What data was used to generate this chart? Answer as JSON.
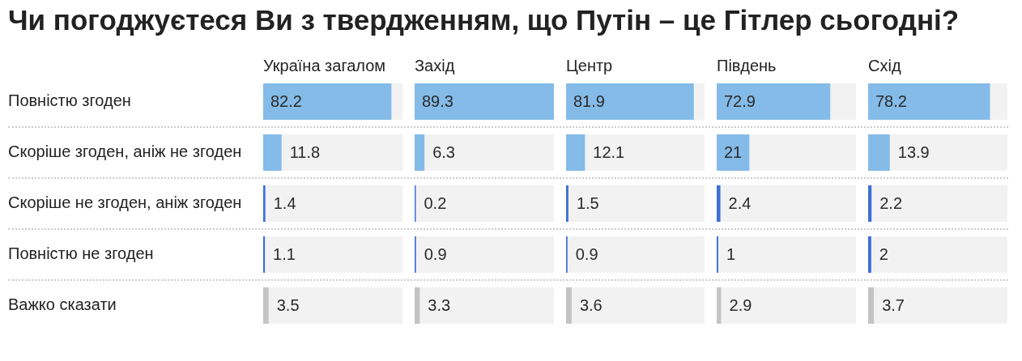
{
  "chart_data": [
    {
      "type": "other",
      "title": "Чи погоджуєтеся Ви з твердженням, що Путін – це Гітлер сьогодні?"
    },
    {
      "type": "bar",
      "orientation": "horizontal",
      "title": "Україна загалом",
      "categories": [
        "Повністю згоден",
        "Скоріше згоден, аніж не згоден",
        "Скоріше не згоден, аніж згоден",
        "Повністю не згоден",
        "Важко сказати"
      ],
      "values": [
        82.2,
        11.8,
        1.4,
        1.1,
        3.5
      ],
      "colors": [
        "#85bbe8",
        "#85bbe8",
        "#3d6fd8",
        "#3d6fd8",
        "#c4c4c4"
      ],
      "xlim": [
        0,
        89.3
      ],
      "data_labels": true,
      "tick_labels": "y"
    },
    {
      "type": "bar",
      "orientation": "horizontal",
      "title": "Захід",
      "categories": [
        null,
        null,
        null,
        null,
        null
      ],
      "values": [
        89.3,
        6.3,
        0.2,
        0.9,
        3.3
      ],
      "colors": [
        "#85bbe8",
        "#85bbe8",
        "#3d6fd8",
        "#3d6fd8",
        "#c4c4c4"
      ],
      "xlim": [
        0,
        89.3
      ],
      "data_labels": true,
      "tick_labels": false
    },
    {
      "type": "bar",
      "orientation": "horizontal",
      "title": "Центр",
      "categories": [
        null,
        null,
        null,
        null,
        null
      ],
      "values": [
        81.9,
        12.1,
        1.5,
        0.9,
        3.6
      ],
      "colors": [
        "#85bbe8",
        "#85bbe8",
        "#3d6fd8",
        "#3d6fd8",
        "#c4c4c4"
      ],
      "xlim": [
        0,
        89.3
      ],
      "data_labels": true,
      "tick_labels": false
    },
    {
      "type": "bar",
      "orientation": "horizontal",
      "title": "Південь",
      "categories": [
        null,
        null,
        null,
        null,
        null
      ],
      "values": [
        72.9,
        21,
        2.4,
        1,
        2.9
      ],
      "colors": [
        "#85bbe8",
        "#85bbe8",
        "#3d6fd8",
        "#3d6fd8",
        "#c4c4c4"
      ],
      "xlim": [
        0,
        89.3
      ],
      "data_labels": true,
      "tick_labels": false
    },
    {
      "type": "bar",
      "orientation": "horizontal",
      "title": "Схід",
      "categories": [
        null,
        null,
        null,
        null,
        null
      ],
      "values": [
        78.2,
        13.9,
        2.2,
        2,
        3.7
      ],
      "colors": [
        "#85bbe8",
        "#85bbe8",
        "#3d6fd8",
        "#3d6fd8",
        "#c4c4c4"
      ],
      "xlim": [
        0,
        89.3
      ],
      "data_labels": true,
      "tick_labels": false
    }
  ]
}
